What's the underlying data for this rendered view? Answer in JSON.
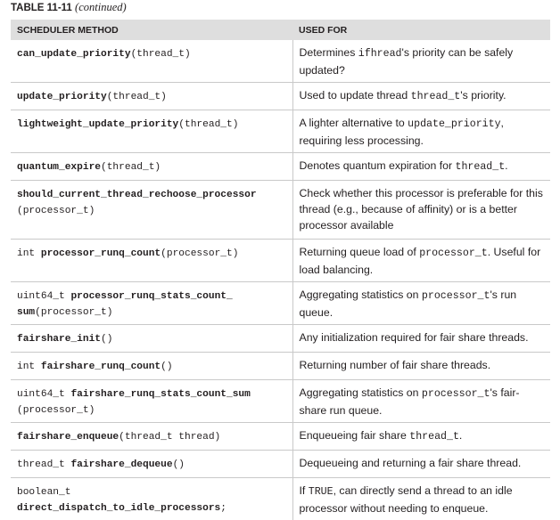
{
  "caption": {
    "number": "TABLE 11-11",
    "continued": "(continued)"
  },
  "header": {
    "method": "SCHEDULER METHOD",
    "used_for": "USED FOR"
  },
  "rows": [
    {
      "m": [
        {
          "t": "can_update_priority",
          "b": true
        },
        {
          "t": "(thread_t)"
        }
      ],
      "d": [
        {
          "t": "Determines "
        },
        {
          "t": "ifhread",
          "c": true
        },
        {
          "t": "'s priority can be safely updated?"
        }
      ]
    },
    {
      "m": [
        {
          "t": "update_priority",
          "b": true
        },
        {
          "t": "(thread_t)"
        }
      ],
      "d": [
        {
          "t": "Used to update thread "
        },
        {
          "t": "thread_t",
          "c": true
        },
        {
          "t": "'s priority."
        }
      ]
    },
    {
      "m": [
        {
          "t": "lightweight_update_priority",
          "b": true
        },
        {
          "t": "(thread_t)"
        }
      ],
      "d": [
        {
          "t": "A lighter alternative to "
        },
        {
          "t": "update_priority",
          "c": true
        },
        {
          "t": ", requiring less processing."
        }
      ]
    },
    {
      "m": [
        {
          "t": "quantum_expire",
          "b": true
        },
        {
          "t": "(thread_t)"
        }
      ],
      "d": [
        {
          "t": "Denotes quantum expiration for "
        },
        {
          "t": "thread_t",
          "c": true
        },
        {
          "t": "."
        }
      ]
    },
    {
      "m": [
        {
          "t": "should_current_thread_rechoose_processor",
          "b": true
        },
        {
          "br": true
        },
        {
          "t": "(processor_t)"
        }
      ],
      "d": [
        {
          "t": "Check whether this processor is preferable for this thread (e.g., because of affinity) or is a better processor available"
        }
      ]
    },
    {
      "m": [
        {
          "t": "int "
        },
        {
          "t": "processor_runq_count",
          "b": true
        },
        {
          "t": "(processor_t)"
        }
      ],
      "d": [
        {
          "t": "Returning queue load of "
        },
        {
          "t": "processor_t",
          "c": true
        },
        {
          "t": ". Useful for load balancing."
        }
      ]
    },
    {
      "m": [
        {
          "t": "uint64_t "
        },
        {
          "t": "processor_runq_stats_count_",
          "b": true
        },
        {
          "br": true
        },
        {
          "t": "sum",
          "b": true
        },
        {
          "t": "(processor_t)"
        }
      ],
      "d": [
        {
          "t": "Aggregating statistics on "
        },
        {
          "t": "processor_t",
          "c": true
        },
        {
          "t": "'s run queue."
        }
      ]
    },
    {
      "m": [
        {
          "t": "fairshare_init",
          "b": true
        },
        {
          "t": "()"
        }
      ],
      "d": [
        {
          "t": "Any initialization required for fair share threads."
        }
      ]
    },
    {
      "m": [
        {
          "t": "int "
        },
        {
          "t": "fairshare_runq_count",
          "b": true
        },
        {
          "t": "()"
        }
      ],
      "d": [
        {
          "t": "Returning number of fair share threads."
        }
      ]
    },
    {
      "m": [
        {
          "t": "uint64_t "
        },
        {
          "t": "fairshare_runq_stats_count_sum",
          "b": true
        },
        {
          "br": true
        },
        {
          "t": "(processor_t)"
        }
      ],
      "d": [
        {
          "t": "Aggregating statistics on "
        },
        {
          "t": "processor_t",
          "c": true
        },
        {
          "t": "'s fair-share run queue."
        }
      ]
    },
    {
      "m": [
        {
          "t": "fairshare_enqueue",
          "b": true
        },
        {
          "t": "(thread_t thread)"
        }
      ],
      "d": [
        {
          "t": "Enqueueing fair share "
        },
        {
          "t": "thread_t",
          "c": true
        },
        {
          "t": "."
        }
      ]
    },
    {
      "m": [
        {
          "t": "thread_t "
        },
        {
          "t": "fairshare_dequeue",
          "b": true
        },
        {
          "t": "()"
        }
      ],
      "d": [
        {
          "t": "Dequeueing and returning a fair share thread."
        }
      ]
    },
    {
      "m": [
        {
          "t": "boolean_t"
        },
        {
          "br": true
        },
        {
          "t": "direct_dispatch_to_idle_processors",
          "b": true
        },
        {
          "t": ";"
        }
      ],
      "d": [
        {
          "t": "If "
        },
        {
          "t": "TRUE",
          "c": true
        },
        {
          "t": ", can directly send a thread to an idle processor without needing to enqueue."
        }
      ]
    }
  ]
}
